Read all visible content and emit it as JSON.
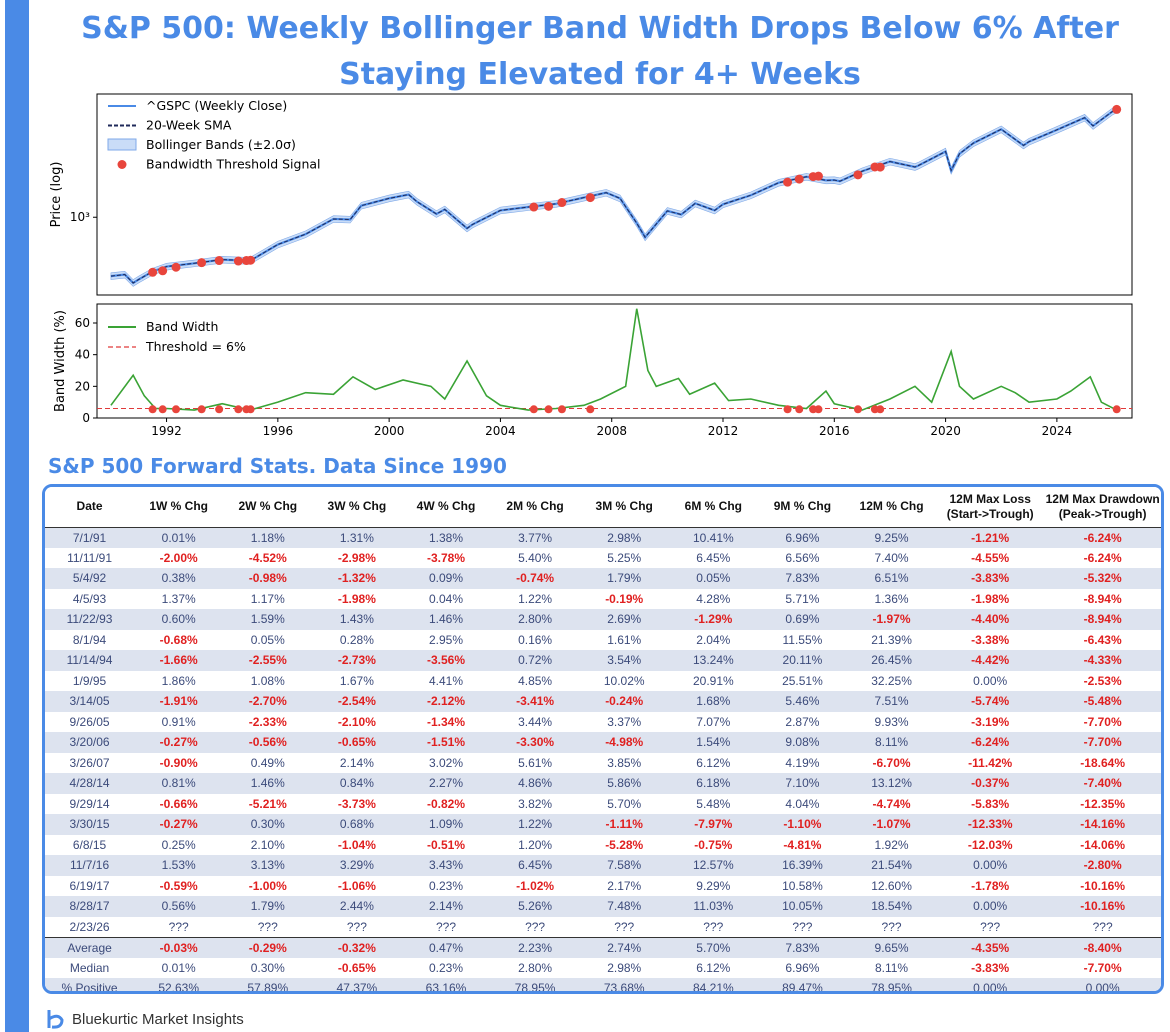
{
  "title": "S&P 500: Weekly Bollinger Band Width Drops Below 6% After Staying Elevated for 4+ Weeks",
  "section_title": "S&P 500 Forward Stats. Data Since 1990",
  "footer": {
    "brand": "Bluekurtic Market Insights"
  },
  "colors": {
    "accent": "#4a8ae6",
    "negative": "#e02020",
    "signal": "#e8453c",
    "bandwidth": "#3aa335"
  },
  "chart_data": [
    {
      "type": "line",
      "title": "",
      "ylabel": "Price (log)",
      "ytick_label": "10³",
      "ytick_value": 1000,
      "xlim": [
        1989.5,
        2026.7
      ],
      "ylim": [
        250,
        9000
      ],
      "legend": [
        "^GSPC (Weekly Close)",
        "20-Week SMA",
        "Bollinger Bands (±2.0σ)",
        "Bandwidth Threshold Signal"
      ],
      "series": [
        {
          "name": "^GSPC (Weekly Close)",
          "x": [
            1990.0,
            1990.5,
            1990.8,
            1991.0,
            1991.5,
            1992.0,
            1993.0,
            1994.0,
            1995.0,
            1996.0,
            1997.0,
            1998.0,
            1998.6,
            1999.0,
            2000.0,
            2000.7,
            2001.0,
            2001.7,
            2002.0,
            2002.8,
            2003.0,
            2004.0,
            2005.0,
            2006.0,
            2007.0,
            2007.8,
            2008.3,
            2008.9,
            2009.2,
            2010.0,
            2010.5,
            2011.0,
            2011.7,
            2012.0,
            2013.0,
            2014.0,
            2015.0,
            2015.7,
            2016.0,
            2016.2,
            2017.0,
            2018.0,
            2018.9,
            2019.0,
            2020.0,
            2020.2,
            2020.5,
            2021.0,
            2022.0,
            2022.8,
            2023.0,
            2024.0,
            2025.0,
            2025.3,
            2026.0,
            2026.15
          ],
          "values": [
            350,
            360,
            310,
            330,
            380,
            415,
            440,
            470,
            460,
            615,
            740,
            970,
            960,
            1230,
            1400,
            1500,
            1320,
            1060,
            1150,
            820,
            880,
            1130,
            1200,
            1270,
            1420,
            1550,
            1400,
            900,
            700,
            1120,
            1050,
            1280,
            1130,
            1260,
            1480,
            1850,
            2060,
            1930,
            1940,
            1900,
            2270,
            2700,
            2450,
            2500,
            3230,
            2300,
            3100,
            3750,
            4800,
            3600,
            3850,
            4750,
            5900,
            5100,
            6600,
            6840
          ]
        },
        {
          "name": "Band Width",
          "ylabel": "Band Width (%)",
          "x": [
            1990.0,
            1990.8,
            1991.2,
            1991.6,
            1992.0,
            1993.0,
            1994.0,
            1995.0,
            1996.0,
            1997.0,
            1998.0,
            1998.7,
            1999.5,
            2000.5,
            2001.5,
            2002.0,
            2002.8,
            2003.5,
            2004.0,
            2005.0,
            2006.0,
            2007.0,
            2007.6,
            2008.5,
            2008.9,
            2009.3,
            2009.6,
            2010.4,
            2010.8,
            2011.7,
            2012.2,
            2013.0,
            2014.0,
            2015.0,
            2015.7,
            2016.0,
            2017.0,
            2018.0,
            2018.9,
            2019.5,
            2020.2,
            2020.5,
            2021.0,
            2022.0,
            2022.5,
            2023.0,
            2024.0,
            2024.5,
            2025.2,
            2025.6,
            2026.15
          ],
          "values": [
            8,
            27,
            14,
            6,
            6,
            5,
            9,
            5,
            10,
            16,
            15,
            26,
            18,
            24,
            20,
            12,
            36,
            14,
            8,
            5,
            6,
            8,
            12,
            20,
            69,
            30,
            20,
            25,
            15,
            22,
            11,
            12,
            8,
            6,
            17,
            9,
            5,
            12,
            20,
            10,
            42,
            20,
            12,
            20,
            16,
            10,
            12,
            17,
            26,
            10,
            5
          ]
        }
      ],
      "signals": [
        {
          "date": "7/1/91",
          "x": 1991.5,
          "price": 375,
          "bw": 5.5
        },
        {
          "date": "11/11/91",
          "x": 1991.86,
          "price": 385,
          "bw": 5.5
        },
        {
          "date": "5/4/92",
          "x": 1992.34,
          "price": 410,
          "bw": 5.5
        },
        {
          "date": "4/5/93",
          "x": 1993.26,
          "price": 445,
          "bw": 5.5
        },
        {
          "date": "11/22/93",
          "x": 1993.89,
          "price": 462,
          "bw": 5.5
        },
        {
          "date": "8/1/94",
          "x": 1994.58,
          "price": 458,
          "bw": 5.5
        },
        {
          "date": "11/14/94",
          "x": 1994.87,
          "price": 462,
          "bw": 5.5
        },
        {
          "date": "1/9/95",
          "x": 1995.02,
          "price": 465,
          "bw": 5.5
        },
        {
          "date": "3/14/05",
          "x": 2005.2,
          "price": 1200,
          "bw": 5.5
        },
        {
          "date": "9/26/05",
          "x": 2005.73,
          "price": 1215,
          "bw": 5.5
        },
        {
          "date": "3/20/06",
          "x": 2006.21,
          "price": 1300,
          "bw": 5.5
        },
        {
          "date": "3/26/07",
          "x": 2007.23,
          "price": 1420,
          "bw": 5.5
        },
        {
          "date": "4/28/14",
          "x": 2014.32,
          "price": 1870,
          "bw": 5.5
        },
        {
          "date": "9/29/14",
          "x": 2014.74,
          "price": 1975,
          "bw": 5.5
        },
        {
          "date": "3/30/15",
          "x": 2015.24,
          "price": 2065,
          "bw": 5.5
        },
        {
          "date": "6/8/15",
          "x": 2015.43,
          "price": 2080,
          "bw": 5.5
        },
        {
          "date": "11/7/16",
          "x": 2016.85,
          "price": 2130,
          "bw": 5.5
        },
        {
          "date": "6/19/17",
          "x": 2017.46,
          "price": 2450,
          "bw": 5.5
        },
        {
          "date": "8/28/17",
          "x": 2017.65,
          "price": 2445,
          "bw": 5.5
        },
        {
          "date": "2/23/26",
          "x": 2026.15,
          "price": 6840,
          "bw": 5.5
        }
      ]
    },
    {
      "type": "line",
      "ylabel": "Band Width (%)",
      "ylim": [
        0,
        72
      ],
      "yticks": [
        0,
        20,
        40,
        60
      ],
      "xticks": [
        1992,
        1996,
        2000,
        2004,
        2008,
        2012,
        2016,
        2020,
        2024
      ],
      "threshold": 6,
      "legend": [
        "Band Width",
        "Threshold = 6%"
      ]
    }
  ],
  "table": {
    "headers": [
      "Date",
      "1W % Chg",
      "2W % Chg",
      "3W % Chg",
      "4W % Chg",
      "2M % Chg",
      "3M % Chg",
      "6M % Chg",
      "9M % Chg",
      "12M % Chg",
      "12M Max Loss\n(Start->Trough)",
      "12M Max Drawdown\n(Peak->Trough)"
    ],
    "rows": [
      [
        "7/1/91",
        "0.01%",
        "1.18%",
        "1.31%",
        "1.38%",
        "3.77%",
        "2.98%",
        "10.41%",
        "6.96%",
        "9.25%",
        "-1.21%",
        "-6.24%"
      ],
      [
        "11/11/91",
        "-2.00%",
        "-4.52%",
        "-2.98%",
        "-3.78%",
        "5.40%",
        "5.25%",
        "6.45%",
        "6.56%",
        "7.40%",
        "-4.55%",
        "-6.24%"
      ],
      [
        "5/4/92",
        "0.38%",
        "-0.98%",
        "-1.32%",
        "0.09%",
        "-0.74%",
        "1.79%",
        "0.05%",
        "7.83%",
        "6.51%",
        "-3.83%",
        "-5.32%"
      ],
      [
        "4/5/93",
        "1.37%",
        "1.17%",
        "-1.98%",
        "0.04%",
        "1.22%",
        "-0.19%",
        "4.28%",
        "5.71%",
        "1.36%",
        "-1.98%",
        "-8.94%"
      ],
      [
        "11/22/93",
        "0.60%",
        "1.59%",
        "1.43%",
        "1.46%",
        "2.80%",
        "2.69%",
        "-1.29%",
        "0.69%",
        "-1.97%",
        "-4.40%",
        "-8.94%"
      ],
      [
        "8/1/94",
        "-0.68%",
        "0.05%",
        "0.28%",
        "2.95%",
        "0.16%",
        "1.61%",
        "2.04%",
        "11.55%",
        "21.39%",
        "-3.38%",
        "-6.43%"
      ],
      [
        "11/14/94",
        "-1.66%",
        "-2.55%",
        "-2.73%",
        "-3.56%",
        "0.72%",
        "3.54%",
        "13.24%",
        "20.11%",
        "26.45%",
        "-4.42%",
        "-4.33%"
      ],
      [
        "1/9/95",
        "1.86%",
        "1.08%",
        "1.67%",
        "4.41%",
        "4.85%",
        "10.02%",
        "20.91%",
        "25.51%",
        "32.25%",
        "0.00%",
        "-2.53%"
      ],
      [
        "3/14/05",
        "-1.91%",
        "-2.70%",
        "-2.54%",
        "-2.12%",
        "-3.41%",
        "-0.24%",
        "1.68%",
        "5.46%",
        "7.51%",
        "-5.74%",
        "-5.48%"
      ],
      [
        "9/26/05",
        "0.91%",
        "-2.33%",
        "-2.10%",
        "-1.34%",
        "3.44%",
        "3.37%",
        "7.07%",
        "2.87%",
        "9.93%",
        "-3.19%",
        "-7.70%"
      ],
      [
        "3/20/06",
        "-0.27%",
        "-0.56%",
        "-0.65%",
        "-1.51%",
        "-3.30%",
        "-4.98%",
        "1.54%",
        "9.08%",
        "8.11%",
        "-6.24%",
        "-7.70%"
      ],
      [
        "3/26/07",
        "-0.90%",
        "0.49%",
        "2.14%",
        "3.02%",
        "5.61%",
        "3.85%",
        "6.12%",
        "4.19%",
        "-6.70%",
        "-11.42%",
        "-18.64%"
      ],
      [
        "4/28/14",
        "0.81%",
        "1.46%",
        "0.84%",
        "2.27%",
        "4.86%",
        "5.86%",
        "6.18%",
        "7.10%",
        "13.12%",
        "-0.37%",
        "-7.40%"
      ],
      [
        "9/29/14",
        "-0.66%",
        "-5.21%",
        "-3.73%",
        "-0.82%",
        "3.82%",
        "5.70%",
        "5.48%",
        "4.04%",
        "-4.74%",
        "-5.83%",
        "-12.35%"
      ],
      [
        "3/30/15",
        "-0.27%",
        "0.30%",
        "0.68%",
        "1.09%",
        "1.22%",
        "-1.11%",
        "-7.97%",
        "-1.10%",
        "-1.07%",
        "-12.33%",
        "-14.16%"
      ],
      [
        "6/8/15",
        "0.25%",
        "2.10%",
        "-1.04%",
        "-0.51%",
        "1.20%",
        "-5.28%",
        "-0.75%",
        "-4.81%",
        "1.92%",
        "-12.03%",
        "-14.06%"
      ],
      [
        "11/7/16",
        "1.53%",
        "3.13%",
        "3.29%",
        "3.43%",
        "6.45%",
        "7.58%",
        "12.57%",
        "16.39%",
        "21.54%",
        "0.00%",
        "-2.80%"
      ],
      [
        "6/19/17",
        "-0.59%",
        "-1.00%",
        "-1.06%",
        "0.23%",
        "-1.02%",
        "2.17%",
        "9.29%",
        "10.58%",
        "12.60%",
        "-1.78%",
        "-10.16%"
      ],
      [
        "8/28/17",
        "0.56%",
        "1.79%",
        "2.44%",
        "2.14%",
        "5.26%",
        "7.48%",
        "11.03%",
        "10.05%",
        "18.54%",
        "0.00%",
        "-10.16%"
      ],
      [
        "2/23/26",
        "???",
        "???",
        "???",
        "???",
        "???",
        "???",
        "???",
        "???",
        "???",
        "???",
        "???"
      ]
    ],
    "stats": [
      [
        "Average",
        "-0.03%",
        "-0.29%",
        "-0.32%",
        "0.47%",
        "2.23%",
        "2.74%",
        "5.70%",
        "7.83%",
        "9.65%",
        "-4.35%",
        "-8.40%"
      ],
      [
        "Median",
        "0.01%",
        "0.30%",
        "-0.65%",
        "0.23%",
        "2.80%",
        "2.98%",
        "6.12%",
        "6.96%",
        "8.11%",
        "-3.83%",
        "-7.70%"
      ],
      [
        "% Positive",
        "52.63%",
        "57.89%",
        "47.37%",
        "63.16%",
        "78.95%",
        "73.68%",
        "84.21%",
        "89.47%",
        "78.95%",
        "0.00%",
        "0.00%"
      ]
    ]
  }
}
